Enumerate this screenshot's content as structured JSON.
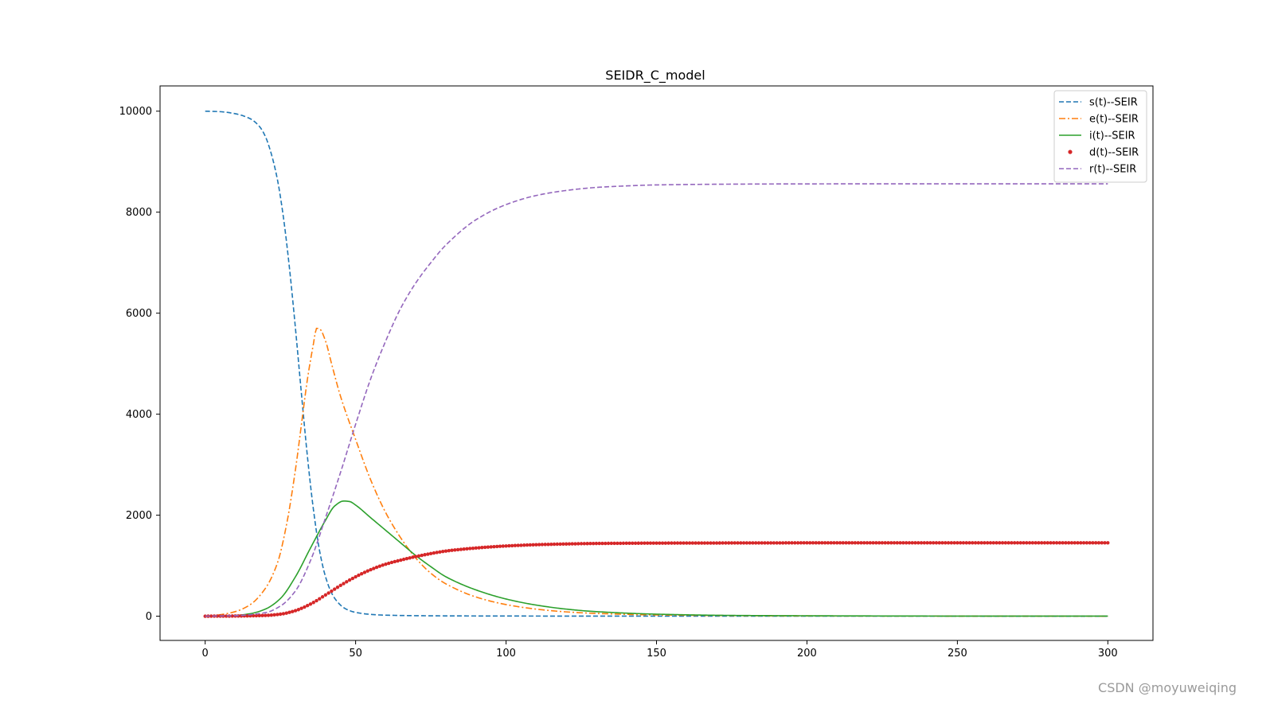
{
  "chart_data": {
    "type": "line",
    "title": "SEIDR_C_model",
    "xlabel": "",
    "ylabel": "",
    "xlim": [
      -15,
      315
    ],
    "ylim": [
      -480,
      10500
    ],
    "x_ticks": [
      0,
      50,
      100,
      150,
      200,
      250,
      300
    ],
    "y_ticks": [
      0,
      2000,
      4000,
      6000,
      8000,
      10000
    ],
    "grid": false,
    "legend_position": "top-right",
    "series": [
      {
        "name": "s(t)--SEIR",
        "color": "#1f77b4",
        "style": "dashed",
        "points": [
          [
            0,
            10000
          ],
          [
            5,
            9990
          ],
          [
            10,
            9950
          ],
          [
            15,
            9850
          ],
          [
            18,
            9700
          ],
          [
            20,
            9500
          ],
          [
            22,
            9150
          ],
          [
            24,
            8650
          ],
          [
            26,
            7900
          ],
          [
            28,
            6900
          ],
          [
            30,
            5700
          ],
          [
            32,
            4400
          ],
          [
            34,
            3150
          ],
          [
            36,
            2100
          ],
          [
            38,
            1300
          ],
          [
            40,
            780
          ],
          [
            42,
            460
          ],
          [
            44,
            280
          ],
          [
            46,
            170
          ],
          [
            48,
            110
          ],
          [
            50,
            75
          ],
          [
            55,
            35
          ],
          [
            60,
            20
          ],
          [
            70,
            10
          ],
          [
            80,
            6
          ],
          [
            100,
            3
          ],
          [
            150,
            1
          ],
          [
            300,
            0
          ]
        ]
      },
      {
        "name": "e(t)--SEIR",
        "color": "#ff7f0e",
        "style": "dashdot",
        "points": [
          [
            0,
            0
          ],
          [
            5,
            30
          ],
          [
            10,
            90
          ],
          [
            15,
            230
          ],
          [
            20,
            550
          ],
          [
            24,
            1050
          ],
          [
            27,
            1800
          ],
          [
            30,
            2900
          ],
          [
            32,
            3800
          ],
          [
            34,
            4700
          ],
          [
            36,
            5400
          ],
          [
            37,
            5700
          ],
          [
            38,
            5690
          ],
          [
            40,
            5450
          ],
          [
            42,
            5000
          ],
          [
            45,
            4350
          ],
          [
            50,
            3500
          ],
          [
            55,
            2700
          ],
          [
            60,
            2050
          ],
          [
            65,
            1550
          ],
          [
            70,
            1150
          ],
          [
            75,
            850
          ],
          [
            80,
            640
          ],
          [
            90,
            380
          ],
          [
            100,
            230
          ],
          [
            110,
            140
          ],
          [
            120,
            85
          ],
          [
            130,
            55
          ],
          [
            150,
            25
          ],
          [
            200,
            5
          ],
          [
            300,
            0
          ]
        ]
      },
      {
        "name": "i(t)--SEIR",
        "color": "#2ca02c",
        "style": "solid",
        "points": [
          [
            0,
            0
          ],
          [
            10,
            15
          ],
          [
            15,
            50
          ],
          [
            20,
            140
          ],
          [
            25,
            350
          ],
          [
            30,
            780
          ],
          [
            35,
            1350
          ],
          [
            40,
            1900
          ],
          [
            43,
            2180
          ],
          [
            46,
            2280
          ],
          [
            48,
            2270
          ],
          [
            50,
            2200
          ],
          [
            55,
            1950
          ],
          [
            60,
            1700
          ],
          [
            65,
            1450
          ],
          [
            70,
            1200
          ],
          [
            75,
            980
          ],
          [
            80,
            780
          ],
          [
            90,
            520
          ],
          [
            100,
            340
          ],
          [
            110,
            220
          ],
          [
            120,
            140
          ],
          [
            130,
            90
          ],
          [
            150,
            40
          ],
          [
            175,
            15
          ],
          [
            200,
            8
          ],
          [
            250,
            2
          ],
          [
            300,
            1
          ]
        ]
      },
      {
        "name": "d(t)--SEIR",
        "color": "#d62728",
        "style": "dots",
        "points": [
          [
            0,
            0
          ],
          [
            10,
            3
          ],
          [
            20,
            15
          ],
          [
            25,
            40
          ],
          [
            30,
            110
          ],
          [
            35,
            240
          ],
          [
            40,
            420
          ],
          [
            45,
            610
          ],
          [
            50,
            780
          ],
          [
            55,
            920
          ],
          [
            60,
            1030
          ],
          [
            65,
            1110
          ],
          [
            70,
            1180
          ],
          [
            75,
            1240
          ],
          [
            80,
            1290
          ],
          [
            90,
            1350
          ],
          [
            100,
            1390
          ],
          [
            110,
            1415
          ],
          [
            120,
            1430
          ],
          [
            130,
            1440
          ],
          [
            150,
            1447
          ],
          [
            175,
            1450
          ],
          [
            200,
            1452
          ],
          [
            250,
            1453
          ],
          [
            300,
            1453
          ]
        ]
      },
      {
        "name": "r(t)--SEIR",
        "color": "#9467bd",
        "style": "dashed",
        "points": [
          [
            0,
            0
          ],
          [
            10,
            10
          ],
          [
            20,
            70
          ],
          [
            25,
            200
          ],
          [
            30,
            500
          ],
          [
            35,
            1100
          ],
          [
            40,
            1950
          ],
          [
            45,
            2850
          ],
          [
            50,
            3800
          ],
          [
            55,
            4700
          ],
          [
            60,
            5450
          ],
          [
            65,
            6100
          ],
          [
            70,
            6600
          ],
          [
            75,
            7000
          ],
          [
            80,
            7350
          ],
          [
            90,
            7850
          ],
          [
            100,
            8150
          ],
          [
            110,
            8330
          ],
          [
            120,
            8430
          ],
          [
            130,
            8490
          ],
          [
            140,
            8520
          ],
          [
            150,
            8540
          ],
          [
            175,
            8555
          ],
          [
            200,
            8560
          ],
          [
            250,
            8562
          ],
          [
            300,
            8562
          ]
        ]
      }
    ]
  },
  "watermark": "CSDN @moyuweiqing"
}
